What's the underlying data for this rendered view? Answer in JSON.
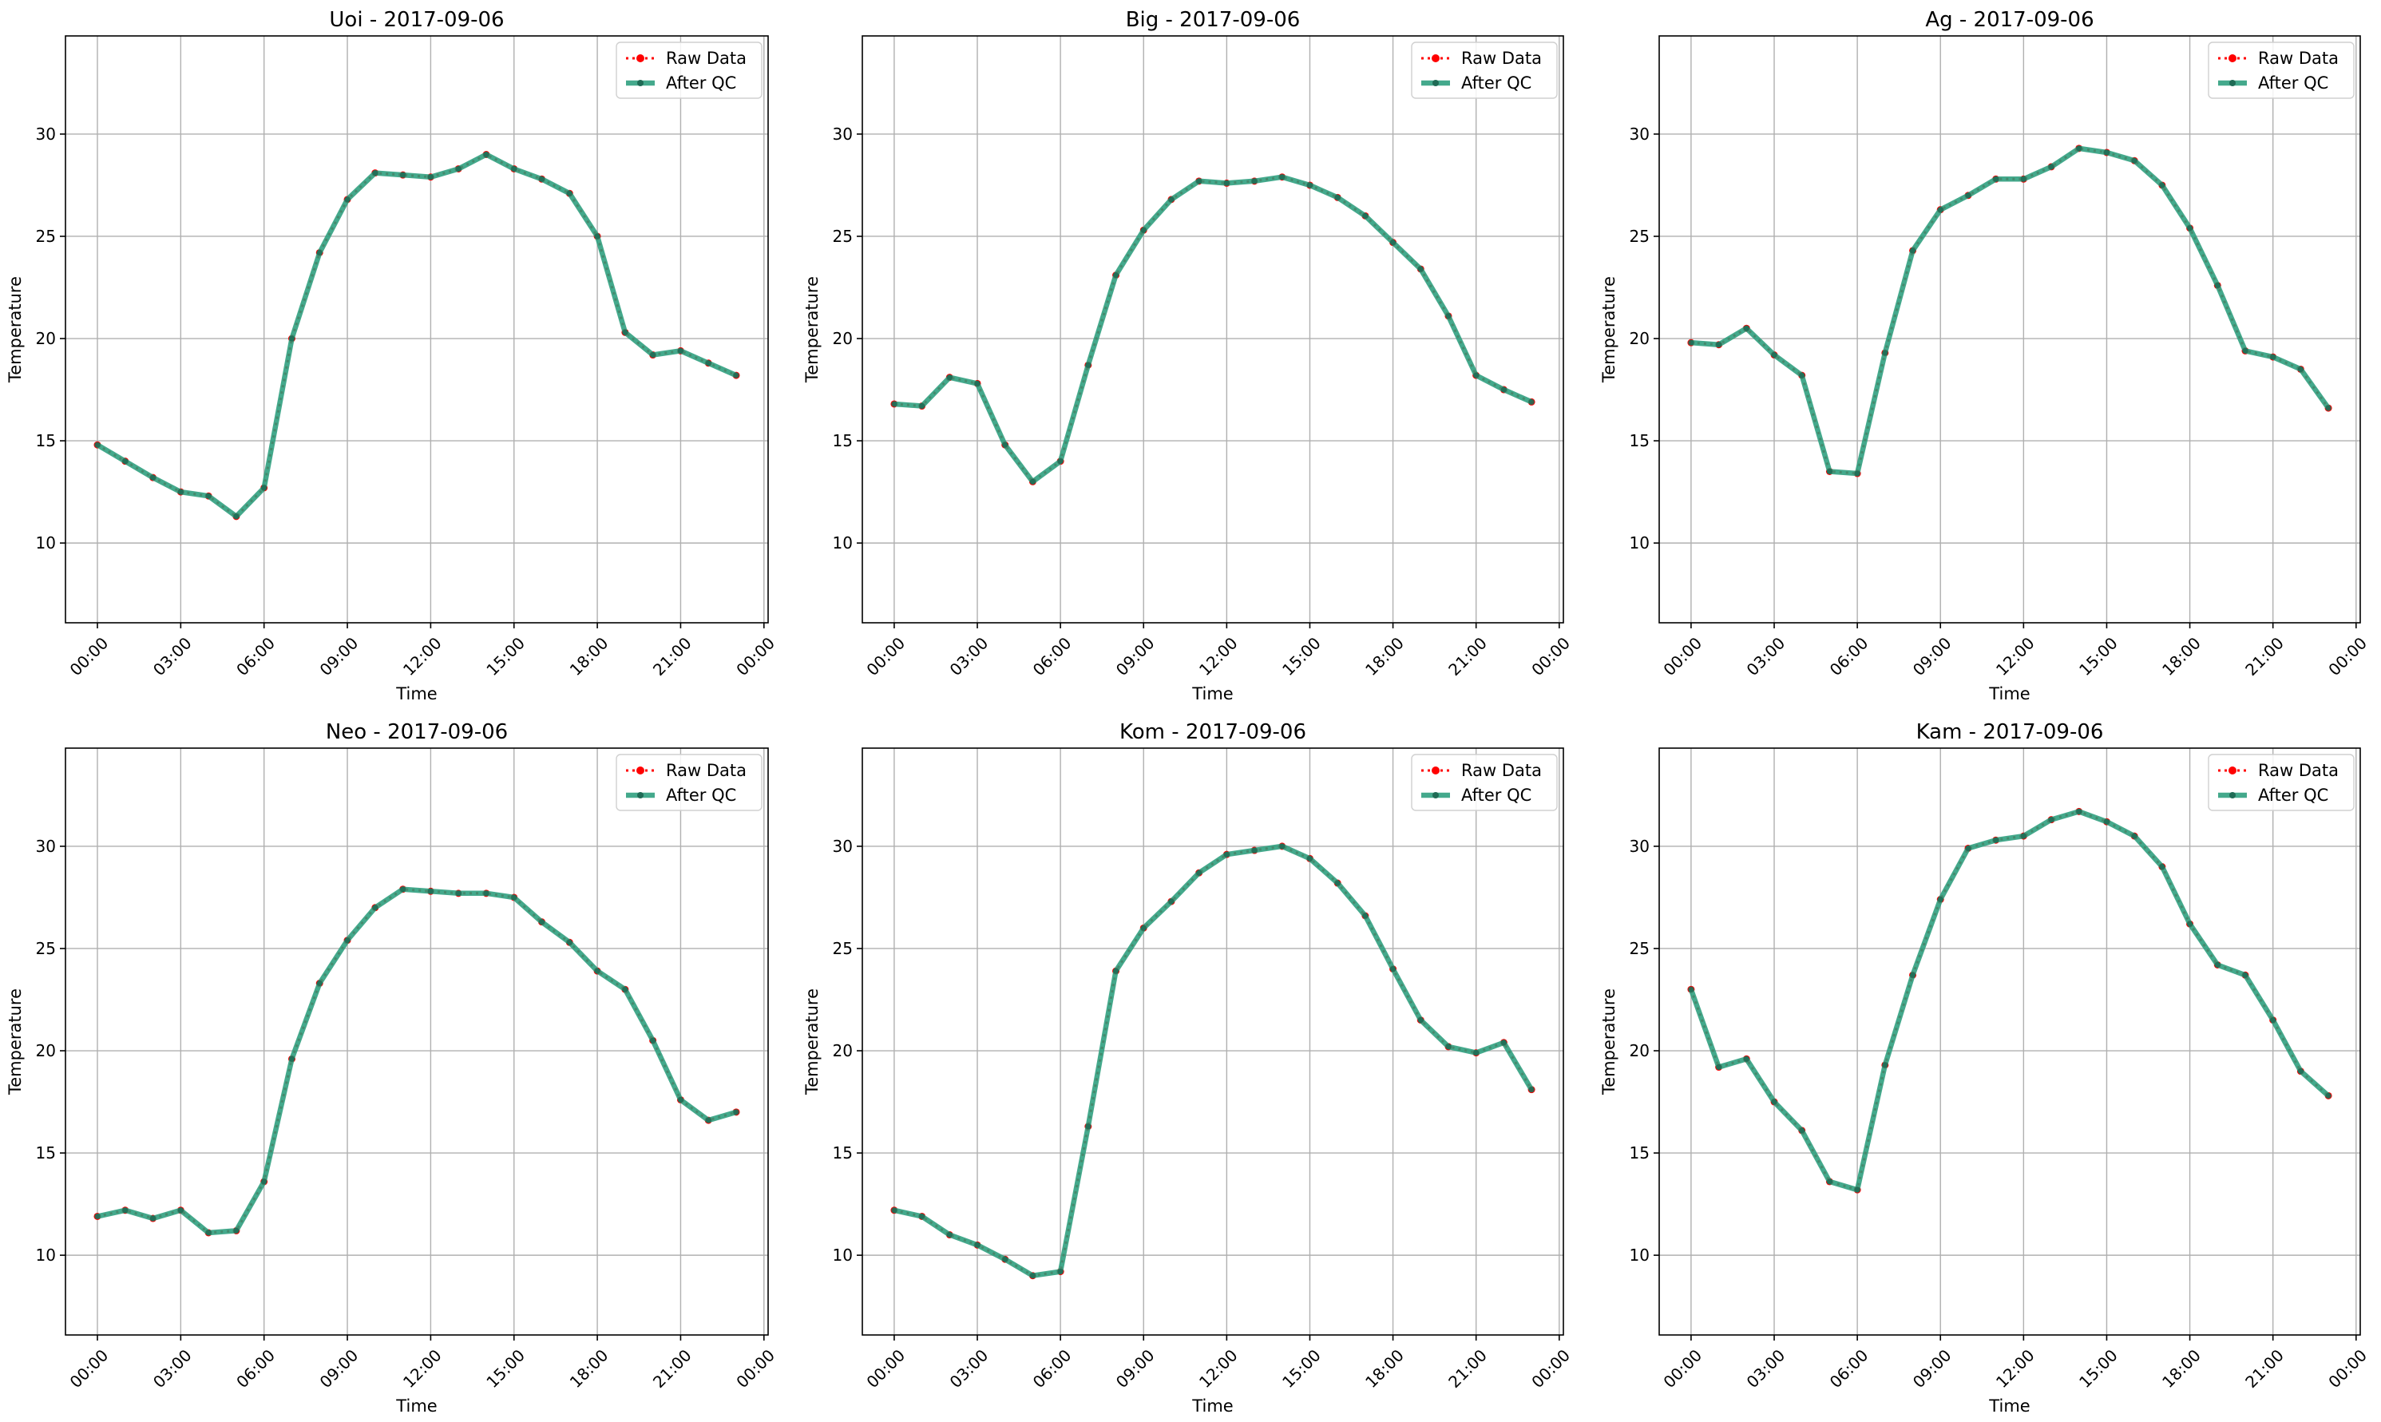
{
  "figure": {
    "background": "#ffffff",
    "grid": true,
    "legend_position": "upper right"
  },
  "colors": {
    "raw": "#ff0000",
    "qc": "#2a9d7c",
    "grid": "#b0b0b0",
    "axis": "#000000"
  },
  "legend": {
    "raw_label": "Raw Data",
    "qc_label": "After QC"
  },
  "chart_data": [
    {
      "type": "line",
      "title": "Uoi - 2017-09-06",
      "xlabel": "Time",
      "ylabel": "Temperature",
      "ylim": [
        6.1,
        34.8
      ],
      "yticks": [
        10,
        15,
        20,
        25,
        30
      ],
      "xlim_hours": [
        -1.15,
        24.15
      ],
      "xticks_hours": [
        0,
        3,
        6,
        9,
        12,
        15,
        18,
        21,
        24
      ],
      "xtick_labels": [
        "00:00",
        "03:00",
        "06:00",
        "09:00",
        "12:00",
        "15:00",
        "18:00",
        "21:00",
        "00:00"
      ],
      "x": [
        "00:00",
        "01:00",
        "02:00",
        "03:00",
        "04:00",
        "05:00",
        "06:00",
        "07:00",
        "08:00",
        "09:00",
        "10:00",
        "11:00",
        "12:00",
        "13:00",
        "14:00",
        "15:00",
        "16:00",
        "17:00",
        "18:00",
        "19:00",
        "20:00",
        "21:00",
        "22:00",
        "23:00"
      ],
      "series": [
        {
          "name": "Raw Data",
          "values": [
            14.8,
            14.0,
            13.2,
            12.5,
            12.3,
            11.3,
            12.7,
            20.0,
            24.2,
            26.8,
            28.1,
            28.0,
            27.9,
            28.3,
            29.0,
            28.3,
            27.8,
            27.1,
            25.0,
            20.3,
            19.2,
            19.4,
            18.8,
            18.2
          ]
        },
        {
          "name": "After QC",
          "values": [
            14.8,
            14.0,
            13.2,
            12.5,
            12.3,
            11.3,
            12.7,
            20.0,
            24.2,
            26.8,
            28.1,
            28.0,
            27.9,
            28.3,
            29.0,
            28.3,
            27.8,
            27.1,
            25.0,
            20.3,
            19.2,
            19.4,
            18.8,
            18.2
          ]
        }
      ]
    },
    {
      "type": "line",
      "title": "Big - 2017-09-06",
      "xlabel": "Time",
      "ylabel": "Temperature",
      "ylim": [
        6.1,
        34.8
      ],
      "yticks": [
        10,
        15,
        20,
        25,
        30
      ],
      "xlim_hours": [
        -1.15,
        24.15
      ],
      "xticks_hours": [
        0,
        3,
        6,
        9,
        12,
        15,
        18,
        21,
        24
      ],
      "xtick_labels": [
        "00:00",
        "03:00",
        "06:00",
        "09:00",
        "12:00",
        "15:00",
        "18:00",
        "21:00",
        "00:00"
      ],
      "x": [
        "00:00",
        "01:00",
        "02:00",
        "03:00",
        "04:00",
        "05:00",
        "06:00",
        "07:00",
        "08:00",
        "09:00",
        "10:00",
        "11:00",
        "12:00",
        "13:00",
        "14:00",
        "15:00",
        "16:00",
        "17:00",
        "18:00",
        "19:00",
        "20:00",
        "21:00",
        "22:00",
        "23:00"
      ],
      "series": [
        {
          "name": "Raw Data",
          "values": [
            16.8,
            16.7,
            18.1,
            17.8,
            14.8,
            13.0,
            14.0,
            18.7,
            23.1,
            25.3,
            26.8,
            27.7,
            27.6,
            27.7,
            27.9,
            27.5,
            26.9,
            26.0,
            24.7,
            23.4,
            21.1,
            18.2,
            17.5,
            16.9
          ]
        },
        {
          "name": "After QC",
          "values": [
            16.8,
            16.7,
            18.1,
            17.8,
            14.8,
            13.0,
            14.0,
            18.7,
            23.1,
            25.3,
            26.8,
            27.7,
            27.6,
            27.7,
            27.9,
            27.5,
            26.9,
            26.0,
            24.7,
            23.4,
            21.1,
            18.2,
            17.5,
            16.9
          ]
        }
      ]
    },
    {
      "type": "line",
      "title": "Ag - 2017-09-06",
      "xlabel": "Time",
      "ylabel": "Temperature",
      "ylim": [
        6.1,
        34.8
      ],
      "yticks": [
        10,
        15,
        20,
        25,
        30
      ],
      "xlim_hours": [
        -1.15,
        24.15
      ],
      "xticks_hours": [
        0,
        3,
        6,
        9,
        12,
        15,
        18,
        21,
        24
      ],
      "xtick_labels": [
        "00:00",
        "03:00",
        "06:00",
        "09:00",
        "12:00",
        "15:00",
        "18:00",
        "21:00",
        "00:00"
      ],
      "x": [
        "00:00",
        "01:00",
        "02:00",
        "03:00",
        "04:00",
        "05:00",
        "06:00",
        "07:00",
        "08:00",
        "09:00",
        "10:00",
        "11:00",
        "12:00",
        "13:00",
        "14:00",
        "15:00",
        "16:00",
        "17:00",
        "18:00",
        "19:00",
        "20:00",
        "21:00",
        "22:00",
        "23:00"
      ],
      "series": [
        {
          "name": "Raw Data",
          "values": [
            19.8,
            19.7,
            20.5,
            19.2,
            18.2,
            13.5,
            13.4,
            19.3,
            24.3,
            26.3,
            27.0,
            27.8,
            27.8,
            28.4,
            29.3,
            29.1,
            28.7,
            27.5,
            25.4,
            22.6,
            19.4,
            19.1,
            18.5,
            16.6
          ]
        },
        {
          "name": "After QC",
          "values": [
            19.8,
            19.7,
            20.5,
            19.2,
            18.2,
            13.5,
            13.4,
            19.3,
            24.3,
            26.3,
            27.0,
            27.8,
            27.8,
            28.4,
            29.3,
            29.1,
            28.7,
            27.5,
            25.4,
            22.6,
            19.4,
            19.1,
            18.5,
            16.6
          ]
        }
      ]
    },
    {
      "type": "line",
      "title": "Neo - 2017-09-06",
      "xlabel": "Time",
      "ylabel": "Temperature",
      "ylim": [
        6.1,
        34.8
      ],
      "yticks": [
        10,
        15,
        20,
        25,
        30
      ],
      "xlim_hours": [
        -1.15,
        24.15
      ],
      "xticks_hours": [
        0,
        3,
        6,
        9,
        12,
        15,
        18,
        21,
        24
      ],
      "xtick_labels": [
        "00:00",
        "03:00",
        "06:00",
        "09:00",
        "12:00",
        "15:00",
        "18:00",
        "21:00",
        "00:00"
      ],
      "x": [
        "00:00",
        "01:00",
        "02:00",
        "03:00",
        "04:00",
        "05:00",
        "06:00",
        "07:00",
        "08:00",
        "09:00",
        "10:00",
        "11:00",
        "12:00",
        "13:00",
        "14:00",
        "15:00",
        "16:00",
        "17:00",
        "18:00",
        "19:00",
        "20:00",
        "21:00",
        "22:00",
        "23:00"
      ],
      "series": [
        {
          "name": "Raw Data",
          "values": [
            11.9,
            12.2,
            11.8,
            12.2,
            11.1,
            11.2,
            13.6,
            19.6,
            23.3,
            25.4,
            27.0,
            27.9,
            27.8,
            27.7,
            27.7,
            27.5,
            26.3,
            25.3,
            23.9,
            23.0,
            20.5,
            17.6,
            16.6,
            17.0
          ]
        },
        {
          "name": "After QC",
          "values": [
            11.9,
            12.2,
            11.8,
            12.2,
            11.1,
            11.2,
            13.6,
            19.6,
            23.3,
            25.4,
            27.0,
            27.9,
            27.8,
            27.7,
            27.7,
            27.5,
            26.3,
            25.3,
            23.9,
            23.0,
            20.5,
            17.6,
            16.6,
            17.0
          ]
        }
      ]
    },
    {
      "type": "line",
      "title": "Kom - 2017-09-06",
      "xlabel": "Time",
      "ylabel": "Temperature",
      "ylim": [
        6.1,
        34.8
      ],
      "yticks": [
        10,
        15,
        20,
        25,
        30
      ],
      "xlim_hours": [
        -1.15,
        24.15
      ],
      "xticks_hours": [
        0,
        3,
        6,
        9,
        12,
        15,
        18,
        21,
        24
      ],
      "xtick_labels": [
        "00:00",
        "03:00",
        "06:00",
        "09:00",
        "12:00",
        "15:00",
        "18:00",
        "21:00",
        "00:00"
      ],
      "x": [
        "00:00",
        "01:00",
        "02:00",
        "03:00",
        "04:00",
        "05:00",
        "06:00",
        "07:00",
        "08:00",
        "09:00",
        "10:00",
        "11:00",
        "12:00",
        "13:00",
        "14:00",
        "15:00",
        "16:00",
        "17:00",
        "18:00",
        "19:00",
        "20:00",
        "21:00",
        "22:00",
        "23:00"
      ],
      "series": [
        {
          "name": "Raw Data",
          "values": [
            12.2,
            11.9,
            11.0,
            10.5,
            9.8,
            9.0,
            9.2,
            16.3,
            23.9,
            26.0,
            27.3,
            28.7,
            29.6,
            29.8,
            30.0,
            29.4,
            28.2,
            26.6,
            24.0,
            21.5,
            20.2,
            19.9,
            20.4,
            18.1
          ]
        },
        {
          "name": "After QC",
          "values": [
            12.2,
            11.9,
            11.0,
            10.5,
            9.8,
            9.0,
            9.2,
            16.3,
            23.9,
            26.0,
            27.3,
            28.7,
            29.6,
            29.8,
            30.0,
            29.4,
            28.2,
            26.6,
            24.0,
            21.5,
            20.2,
            19.9,
            20.4,
            18.1
          ]
        }
      ]
    },
    {
      "type": "line",
      "title": "Kam - 2017-09-06",
      "xlabel": "Time",
      "ylabel": "Temperature",
      "ylim": [
        6.1,
        34.8
      ],
      "yticks": [
        10,
        15,
        20,
        25,
        30
      ],
      "xlim_hours": [
        -1.15,
        24.15
      ],
      "xticks_hours": [
        0,
        3,
        6,
        9,
        12,
        15,
        18,
        21,
        24
      ],
      "xtick_labels": [
        "00:00",
        "03:00",
        "06:00",
        "09:00",
        "12:00",
        "15:00",
        "18:00",
        "21:00",
        "00:00"
      ],
      "x": [
        "00:00",
        "01:00",
        "02:00",
        "03:00",
        "04:00",
        "05:00",
        "06:00",
        "07:00",
        "08:00",
        "09:00",
        "10:00",
        "11:00",
        "12:00",
        "13:00",
        "14:00",
        "15:00",
        "16:00",
        "17:00",
        "18:00",
        "19:00",
        "20:00",
        "21:00",
        "22:00",
        "23:00"
      ],
      "series": [
        {
          "name": "Raw Data",
          "values": [
            23.0,
            19.2,
            19.6,
            17.5,
            16.1,
            13.6,
            13.2,
            19.3,
            23.7,
            27.4,
            29.9,
            30.3,
            30.5,
            31.3,
            31.7,
            31.2,
            30.5,
            29.0,
            26.2,
            24.2,
            23.7,
            21.5,
            19.0,
            17.8
          ]
        },
        {
          "name": "After QC",
          "values": [
            23.0,
            19.2,
            19.6,
            17.5,
            16.1,
            13.6,
            13.2,
            19.3,
            23.7,
            27.4,
            29.9,
            30.3,
            30.5,
            31.3,
            31.7,
            31.2,
            30.5,
            29.0,
            26.2,
            24.2,
            23.7,
            21.5,
            19.0,
            17.8
          ]
        }
      ]
    }
  ]
}
